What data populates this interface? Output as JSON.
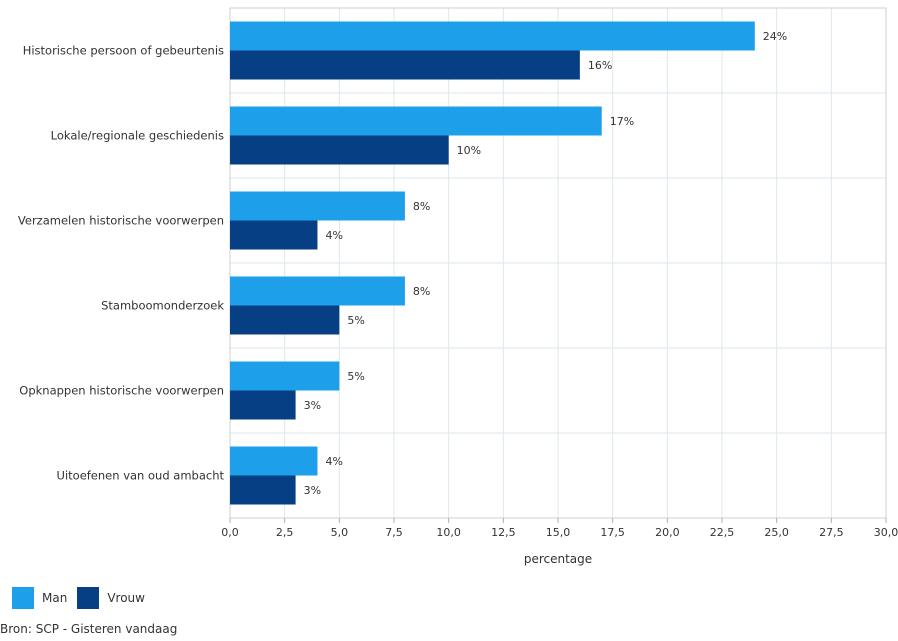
{
  "chart_data": {
    "type": "bar",
    "orientation": "horizontal",
    "categories": [
      "Historische persoon of gebeurtenis",
      "Lokale/regionale geschiedenis",
      "Verzamelen historische voorwerpen",
      "Stamboomonderzoek",
      "Opknappen historische voorwerpen",
      "Uitoefenen van oud ambacht"
    ],
    "series": [
      {
        "name": "Man",
        "color": "#1e9fea",
        "values": [
          24,
          17,
          8,
          8,
          5,
          4
        ],
        "labels": [
          "24%",
          "17%",
          "8%",
          "8%",
          "5%",
          "4%"
        ]
      },
      {
        "name": "Vrouw",
        "color": "#063f84",
        "values": [
          16,
          10,
          4,
          5,
          3,
          3
        ],
        "labels": [
          "16%",
          "10%",
          "4%",
          "5%",
          "3%",
          "3%"
        ]
      }
    ],
    "xlim": [
      0,
      30
    ],
    "xticks": [
      0,
      2.5,
      5,
      7.5,
      10,
      12.5,
      15,
      17.5,
      20,
      22.5,
      25,
      27.5,
      30
    ],
    "xtick_labels": [
      "0,0",
      "2,5",
      "5,0",
      "7,5",
      "10,0",
      "12,5",
      "15,0",
      "17,5",
      "20,0",
      "22,5",
      "25,0",
      "27,5",
      "30,0"
    ],
    "xlabel": "percentage",
    "grid": true,
    "legend_position": "bottom-left"
  },
  "source_text": "Bron: SCP - Gisteren vandaag"
}
